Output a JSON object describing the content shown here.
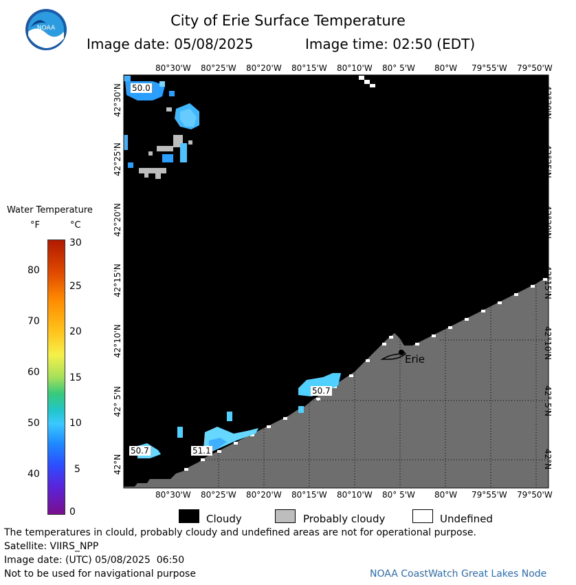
{
  "header": {
    "title": "City of Erie Surface Temperature",
    "image_date_label": "Image date: 05/08/2025",
    "image_time_label": "Image time: 02:50 (EDT)"
  },
  "logo": {
    "text": "NOAA"
  },
  "map": {
    "longitude_labels": [
      "80°30'W",
      "80°25'W",
      "80°20'W",
      "80°15'W",
      "80°10'W",
      "80° 5'W",
      "80°W",
      "79°55'W",
      "79°50'W"
    ],
    "latitude_labels": [
      "42°30'N",
      "42°25'N",
      "42°20'N",
      "42°15'N",
      "42°10'N",
      "42° 5'N",
      "42°N"
    ],
    "temperature_labels": [
      "50.0",
      "50.7",
      "51.1",
      "50.7"
    ],
    "city_label": "Erie",
    "colors": {
      "cloudy": "#000000",
      "land": "#6e6e6e",
      "probably_cloudy": "#bdbdbd",
      "undefined": "#ffffff"
    }
  },
  "legend": {
    "title": "Water Temperature",
    "unit_f": "°F",
    "unit_c": "°C",
    "fahrenheit_ticks": [
      "80",
      "70",
      "60",
      "50",
      "40"
    ],
    "celsius_ticks": [
      "30",
      "25",
      "20",
      "15",
      "10",
      "5",
      "0"
    ]
  },
  "key": {
    "cloudy": "Cloudy",
    "probably_cloudy": "Probably cloudy",
    "undefined": "Undefined"
  },
  "footer": {
    "disclaimer": "The temperatures in clould, probably cloudy and undefined areas are not for operational purpose.",
    "satellite": "Satellite: VIIRS_NPP",
    "utc_date": "Image date: (UTC) 05/08/2025  06:50",
    "navigation_note": "Not to be used for navigational purpose",
    "credit": "NOAA CoastWatch Great Lakes Node"
  }
}
